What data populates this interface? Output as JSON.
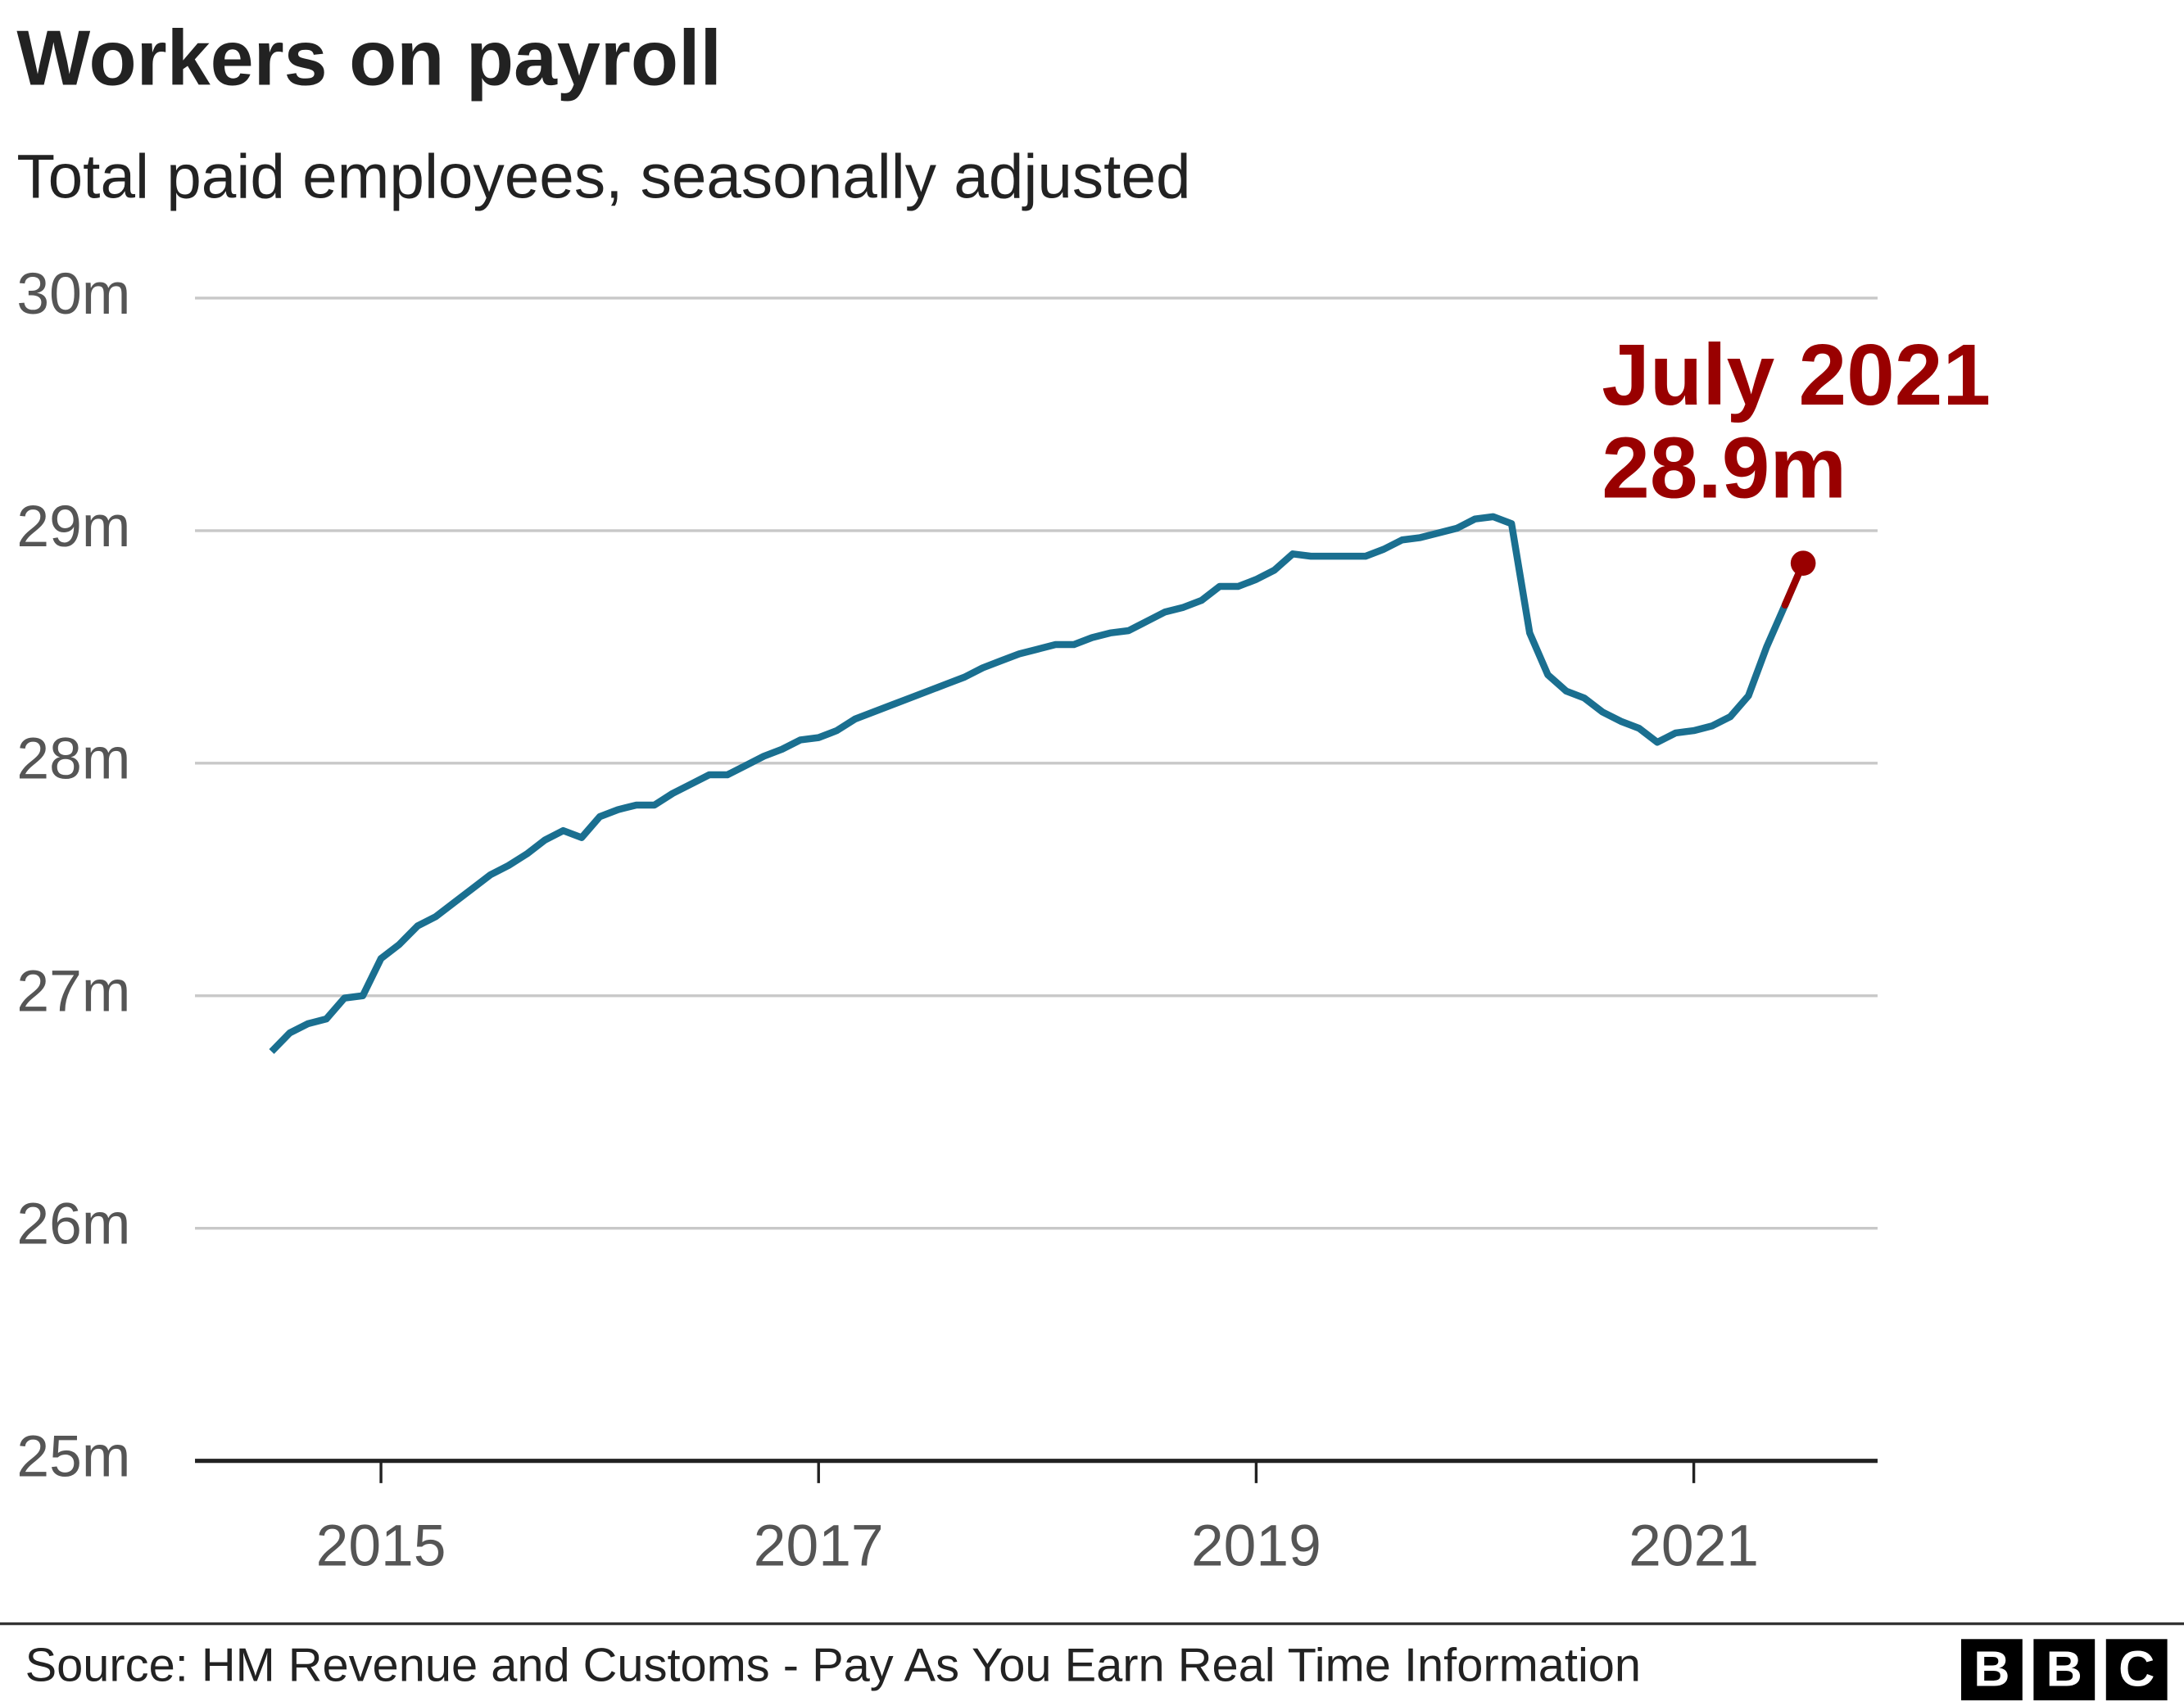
{
  "chart_data": {
    "type": "line",
    "title": "Workers on payroll",
    "subtitle": "Total paid employees, seasonally adjusted",
    "source": "Source: HM Revenue and Customs - Pay As You Earn Real Time Information",
    "logo": [
      "B",
      "B",
      "C"
    ],
    "annotation": {
      "label": "July 2021",
      "value": "28.9m"
    },
    "x": [
      2014.5,
      2014.583,
      2014.667,
      2014.75,
      2014.833,
      2014.917,
      2015,
      2015.083,
      2015.167,
      2015.25,
      2015.333,
      2015.417,
      2015.5,
      2015.583,
      2015.667,
      2015.75,
      2015.833,
      2015.917,
      2016,
      2016.083,
      2016.167,
      2016.25,
      2016.333,
      2016.417,
      2016.5,
      2016.583,
      2016.667,
      2016.75,
      2016.833,
      2016.917,
      2017,
      2017.083,
      2017.167,
      2017.25,
      2017.333,
      2017.417,
      2017.5,
      2017.583,
      2017.667,
      2017.75,
      2017.833,
      2017.917,
      2018,
      2018.083,
      2018.167,
      2018.25,
      2018.333,
      2018.417,
      2018.5,
      2018.583,
      2018.667,
      2018.75,
      2018.833,
      2018.917,
      2019,
      2019.083,
      2019.167,
      2019.25,
      2019.333,
      2019.417,
      2019.5,
      2019.583,
      2019.667,
      2019.75,
      2019.833,
      2019.917,
      2020,
      2020.083,
      2020.167,
      2020.25,
      2020.333,
      2020.417,
      2020.5,
      2020.583,
      2020.667,
      2020.75,
      2020.833,
      2020.917,
      2021,
      2021.083,
      2021.167,
      2021.25,
      2021.333,
      2021.417,
      2021.5
    ],
    "series": [
      {
        "color": "#1a6f90",
        "highlight_color": "#990000",
        "values": [
          26.76,
          26.84,
          26.88,
          26.9,
          26.99,
          27.0,
          27.16,
          27.22,
          27.3,
          27.34,
          27.4,
          27.46,
          27.52,
          27.56,
          27.61,
          27.67,
          27.71,
          27.68,
          27.77,
          27.8,
          27.82,
          27.82,
          27.87,
          27.91,
          27.95,
          27.95,
          27.99,
          28.03,
          28.06,
          28.1,
          28.11,
          28.14,
          28.19,
          28.22,
          28.25,
          28.28,
          28.31,
          28.34,
          28.37,
          28.41,
          28.44,
          28.47,
          28.49,
          28.51,
          28.51,
          28.54,
          28.56,
          28.57,
          28.61,
          28.65,
          28.67,
          28.7,
          28.76,
          28.76,
          28.79,
          28.83,
          28.9,
          28.89,
          28.89,
          28.89,
          28.89,
          28.92,
          28.96,
          28.97,
          28.99,
          29.01,
          29.05,
          29.06,
          29.03,
          28.56,
          28.38,
          28.31,
          28.28,
          28.22,
          28.18,
          28.15,
          28.09,
          28.13,
          28.14,
          28.16,
          28.2,
          28.29,
          28.5,
          28.68,
          28.86
        ]
      }
    ],
    "xlim": [
      2014.15,
      2021.84
    ],
    "xticks": [
      2015,
      2017,
      2019,
      2021
    ],
    "ylim": [
      25,
      30
    ],
    "yticks": [
      {
        "value": 25,
        "label": "25m"
      },
      {
        "value": 26,
        "label": "26m"
      },
      {
        "value": 27,
        "label": "27m"
      },
      {
        "value": 28,
        "label": "28m"
      },
      {
        "value": 29,
        "label": "29m"
      },
      {
        "value": 30,
        "label": "30m"
      }
    ],
    "grid": true
  }
}
